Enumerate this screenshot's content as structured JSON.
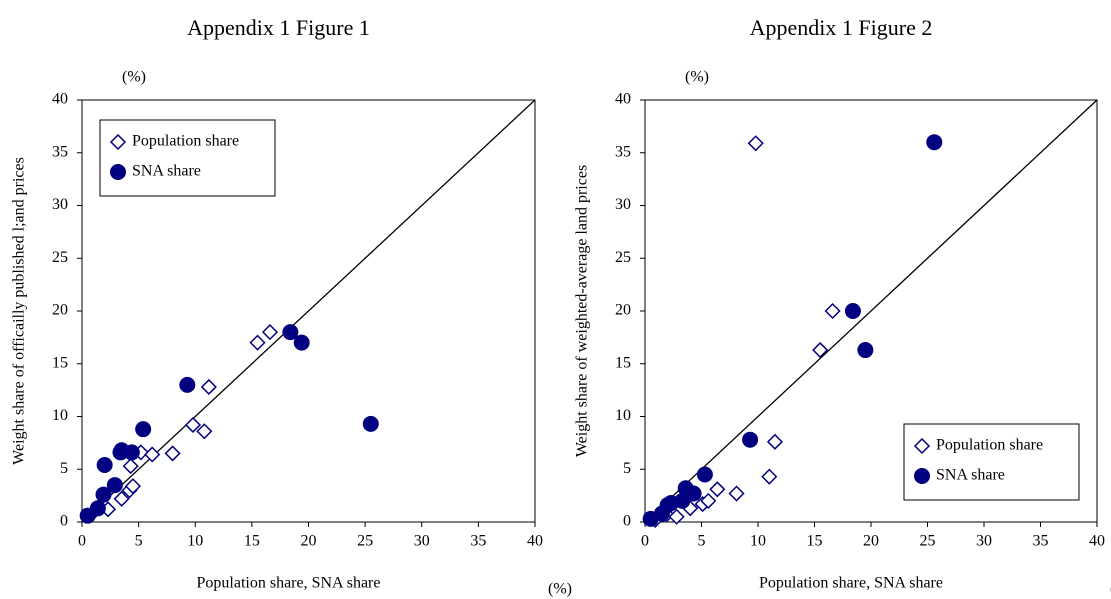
{
  "chart_data": [
    {
      "type": "scatter",
      "title": "Appendix 1 Figure 1",
      "xlabel": "Population share, SNA share",
      "ylabel": "Weight share of officailly published  l;and prices",
      "x_unit": "(%)",
      "y_unit": "(%)",
      "xlim": [
        0,
        40
      ],
      "ylim": [
        0,
        40
      ],
      "xticks": [
        0,
        5,
        10,
        15,
        20,
        25,
        30,
        35,
        40
      ],
      "yticks": [
        0,
        5,
        10,
        15,
        20,
        25,
        30,
        35,
        40
      ],
      "legend": "upper left",
      "diagonal": true,
      "series": [
        {
          "name": "Population share",
          "color": "#000080",
          "marker": "diamond",
          "x": [
            0.8,
            2.3,
            3.5,
            4.2,
            4.5,
            4.3,
            5.2,
            6.2,
            8.0,
            9.8,
            10.8,
            11.2,
            15.5,
            16.6
          ],
          "values": [
            0.7,
            1.2,
            2.2,
            3.0,
            3.4,
            5.3,
            6.6,
            6.4,
            6.5,
            9.2,
            8.6,
            12.8,
            17.0,
            18.0
          ]
        },
        {
          "name": "SNA share",
          "color": "#000080",
          "marker": "circle",
          "x": [
            0.5,
            1.4,
            1.9,
            2.0,
            2.9,
            3.4,
            3.5,
            4.4,
            5.4,
            9.3,
            18.4,
            19.4,
            25.5
          ],
          "values": [
            0.6,
            1.3,
            2.6,
            5.4,
            3.5,
            6.6,
            6.8,
            6.6,
            8.8,
            13.0,
            18.0,
            17.0,
            9.3
          ]
        }
      ]
    },
    {
      "type": "scatter",
      "title": "Appendix 1 Figure 2",
      "xlabel": "Population share, SNA share",
      "ylabel": "Weight share of weighted-average land prices",
      "x_unit": "(%)",
      "y_unit": "(%)",
      "xlim": [
        0,
        40
      ],
      "ylim": [
        0,
        40
      ],
      "xticks": [
        0,
        5,
        10,
        15,
        20,
        25,
        30,
        35,
        40
      ],
      "yticks": [
        0,
        5,
        10,
        15,
        20,
        25,
        30,
        35,
        40
      ],
      "legend": "lower right",
      "diagonal": true,
      "series": [
        {
          "name": "Population share",
          "color": "#000080",
          "marker": "diamond",
          "x": [
            0.9,
            1.9,
            2.8,
            4.0,
            5.1,
            5.6,
            6.4,
            8.1,
            9.8,
            11.0,
            11.5,
            15.5,
            16.6
          ],
          "values": [
            0.2,
            0.7,
            0.5,
            1.3,
            1.7,
            2.0,
            3.1,
            2.7,
            35.9,
            4.3,
            7.6,
            16.3,
            20.0
          ]
        },
        {
          "name": "SNA share",
          "color": "#000080",
          "marker": "circle",
          "x": [
            0.5,
            1.5,
            2.0,
            2.3,
            3.3,
            3.6,
            4.3,
            5.3,
            9.3,
            18.4,
            19.5,
            25.6
          ],
          "values": [
            0.3,
            0.8,
            1.6,
            1.8,
            2.0,
            3.2,
            2.7,
            4.5,
            7.8,
            20.0,
            16.3,
            36.0
          ]
        }
      ]
    }
  ]
}
